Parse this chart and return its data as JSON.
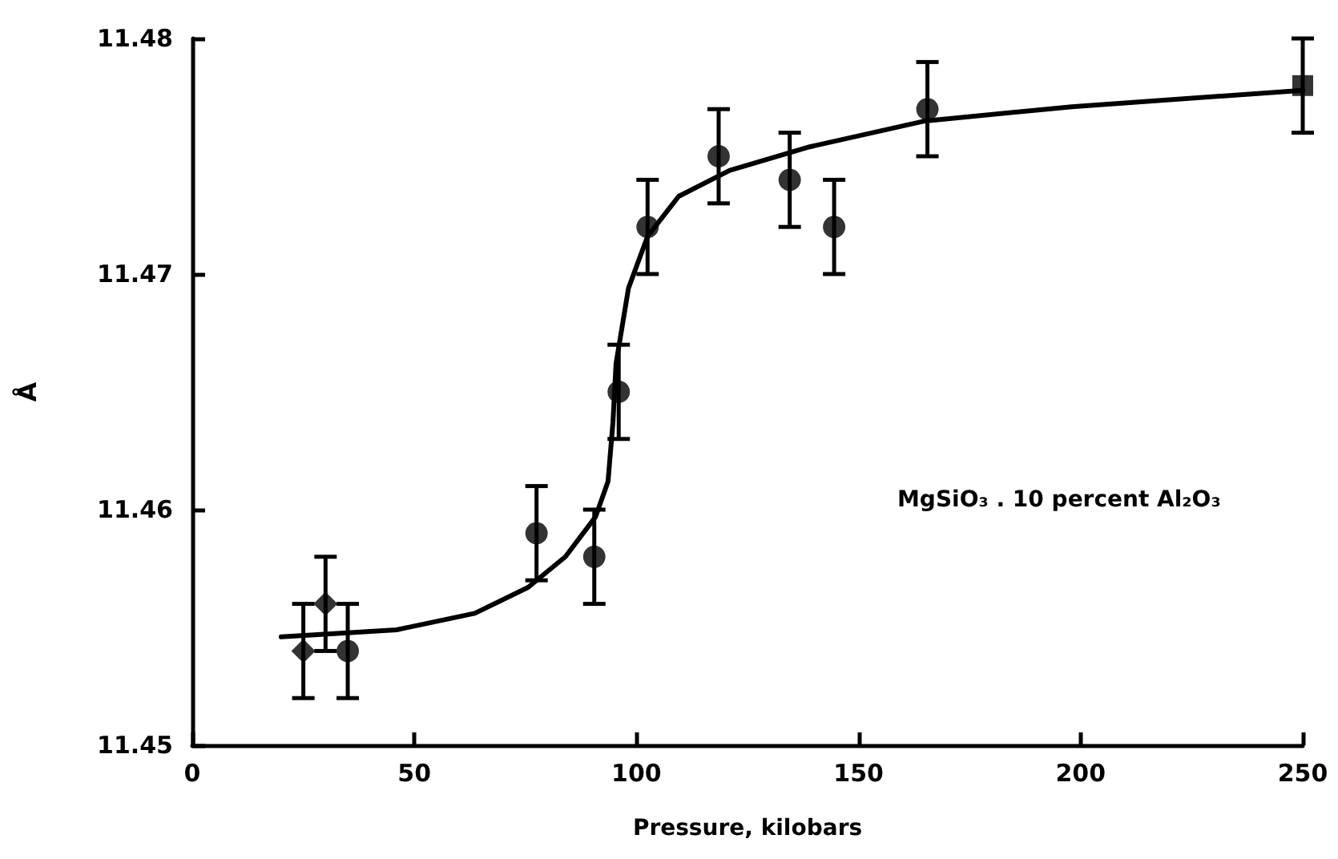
{
  "chart_data": {
    "type": "scatter",
    "xlabel": "Pressure, kilobars",
    "ylabel": "Å",
    "xlim": [
      0,
      250
    ],
    "xticks": [
      0,
      50,
      100,
      150,
      200,
      250
    ],
    "ylim": [
      11.45,
      11.48
    ],
    "yticks": [
      11.45,
      11.46,
      11.47,
      11.48
    ],
    "grid": false,
    "annotations": [
      "MgSiO₃ . 10 percent Al₂O₃"
    ],
    "series": [
      {
        "marker": "diamond",
        "color": "#000000",
        "x": [
          25,
          30
        ],
        "values": [
          11.454,
          11.456
        ],
        "errors": [
          0.002,
          0.002
        ]
      },
      {
        "marker": "circle",
        "color": "#000000",
        "x": [
          35,
          77.5,
          90.5,
          96,
          102.5,
          118.5,
          134.5,
          144.5,
          165.5
        ],
        "values": [
          11.454,
          11.459,
          11.458,
          11.465,
          11.472,
          11.475,
          11.474,
          11.472,
          11.477
        ],
        "errors": [
          0.002,
          0.002,
          0.002,
          0.002,
          0.002,
          0.002,
          0.002,
          0.002,
          0.002
        ]
      },
      {
        "marker": "square",
        "color": "#000000",
        "x": [
          250
        ],
        "values": [
          11.478
        ],
        "errors": [
          0.002
        ]
      },
      {
        "type": "line",
        "marker": "none",
        "line_style": "solid",
        "color": "#000000",
        "x": [
          20,
          46,
          63.6,
          75.6,
          84,
          90.8,
          93.6,
          94.7,
          95.4,
          98.2,
          102.5,
          109.5,
          121,
          139,
          165,
          198,
          250
        ],
        "values": [
          11.4546,
          11.4549,
          11.4556,
          11.4567,
          11.458,
          11.4597,
          11.4612,
          11.4637,
          11.4662,
          11.4694,
          11.4716,
          11.4733,
          11.4744,
          11.4754,
          11.4765,
          11.4771,
          11.4778
        ]
      }
    ]
  }
}
